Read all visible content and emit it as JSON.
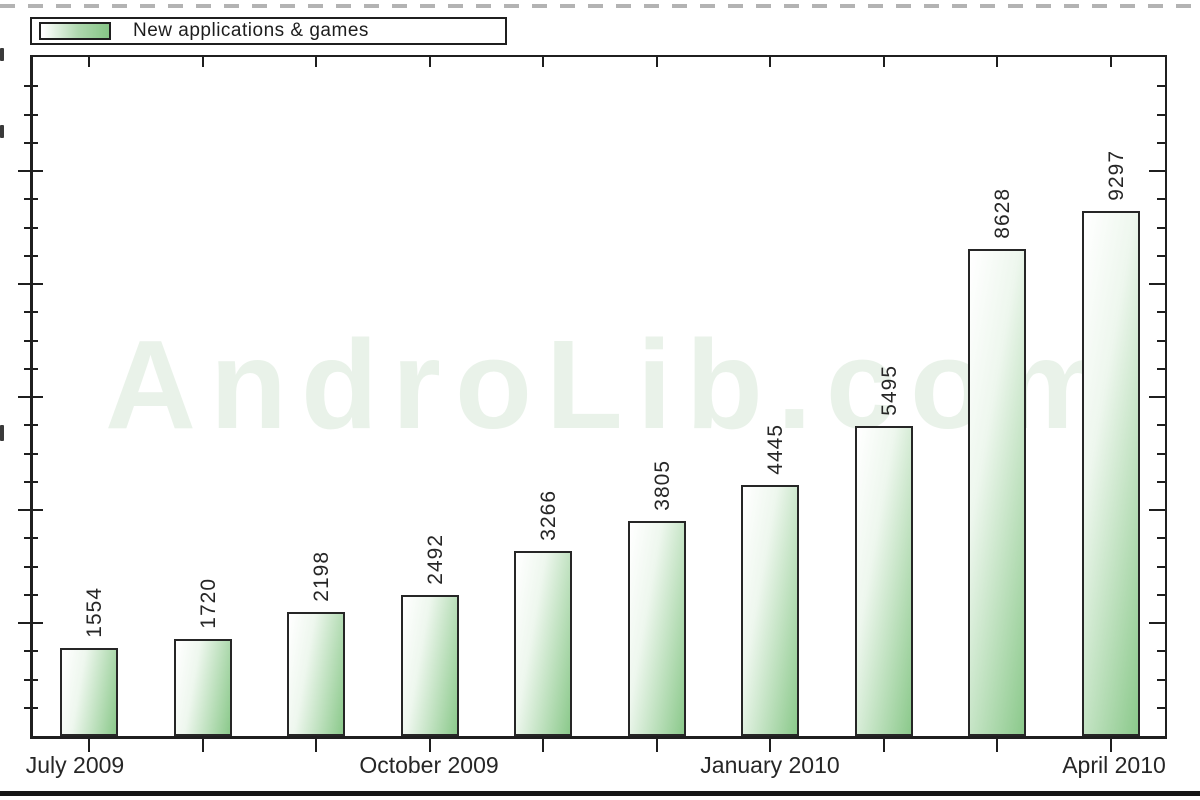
{
  "legend": {
    "label": "New applications & games"
  },
  "watermark": "AndroLib.com",
  "colors": {
    "bar_green": "#8bc98b",
    "bar_light": "#ffffff",
    "axis": "#1f1f1f",
    "text": "#262626",
    "watermark_tint": "#eef4ee"
  },
  "chart_data": {
    "type": "bar",
    "title": "",
    "xlabel": "",
    "ylabel": "",
    "legend": "New applications & games",
    "legend_position": "top-left",
    "values": [
      1554,
      1720,
      2198,
      2492,
      3266,
      3805,
      4445,
      5495,
      8628,
      9297
    ],
    "bar_value_labels": [
      "1554",
      "1720",
      "2198",
      "2492",
      "3266",
      "3805",
      "4445",
      "5495",
      "8628",
      "9297"
    ],
    "x_tick_labels": [
      "July 2009",
      "October 2009",
      "January 2010",
      "April 2010"
    ],
    "x_tick_bar_indices": [
      0,
      3,
      6,
      9
    ],
    "ylim": [
      0,
      12000
    ],
    "y_minor_step": 500,
    "y_major_step": 2000,
    "y_axis_numeric_labels_visible": false,
    "grid": false,
    "bar_fill": "white-to-green horizontal gradient",
    "watermark": "AndroLib.com"
  }
}
